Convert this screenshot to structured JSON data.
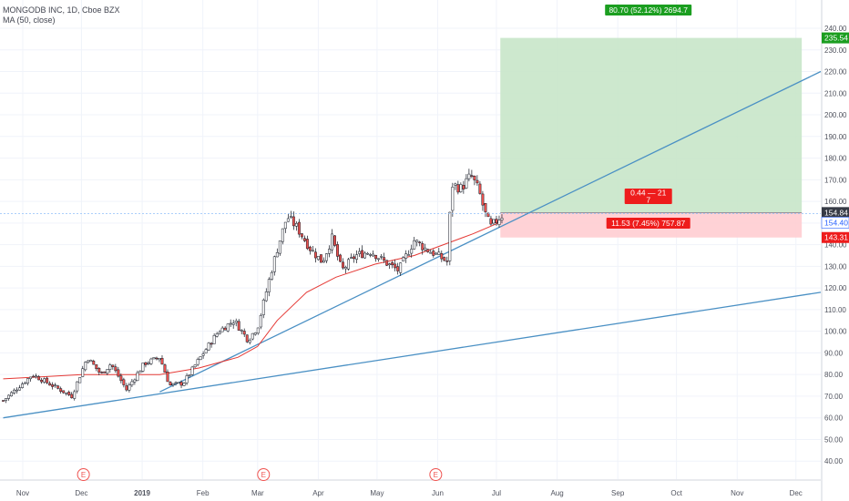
{
  "legend": {
    "title": "MONGODB INC, 1D, Cboe BZX",
    "indicator": "MA (50, close)"
  },
  "colors": {
    "up": "#ffffff",
    "down": "#ef5350",
    "wick": "#131722",
    "ma": "#e53935",
    "trendline": "#4a90c4",
    "target_zone": "#c8e6c9",
    "stop_zone": "#ffcdd2",
    "target_label": "#1b9e20",
    "stop_label": "#ee1c1c"
  },
  "position": {
    "target_label": "80.70 (52.12%) 2694.7",
    "center_label_line1": "0.44 — 21",
    "center_label_line2": "7",
    "stop_label": "11.53 (7.45%) 757.87",
    "target_price_badge": "235.54",
    "entry_price_badge": "154.84",
    "current_price_badge": "154.40",
    "stop_price_badge": "143.31"
  },
  "earnings_marker": "E",
  "chart_data": {
    "type": "candlestick",
    "title": "MONGODB INC, 1D, Cboe BZX",
    "ylim": [
      22,
      242
    ],
    "yticks": [
      30,
      40,
      50,
      60,
      70,
      80,
      90,
      100,
      110,
      120,
      130,
      140,
      150,
      160,
      170,
      180,
      190,
      200,
      210,
      220,
      230,
      240
    ],
    "x_labels": [
      {
        "label": "Nov",
        "day": 0
      },
      {
        "label": "Dec",
        "day": 30
      },
      {
        "label": "2019",
        "day": 61
      },
      {
        "label": "Feb",
        "day": 92
      },
      {
        "label": "Mar",
        "day": 120
      },
      {
        "label": "Apr",
        "day": 151
      },
      {
        "label": "May",
        "day": 181
      },
      {
        "label": "Jun",
        "day": 212
      },
      {
        "label": "Jul",
        "day": 242
      },
      {
        "label": "Aug",
        "day": 273
      },
      {
        "label": "Sep",
        "day": 304
      },
      {
        "label": "Oct",
        "day": 334
      },
      {
        "label": "Nov",
        "day": 365
      },
      {
        "label": "Dec",
        "day": 395
      }
    ],
    "earnings_days": [
      31,
      123,
      211
    ],
    "key_points": [
      {
        "day": -10,
        "close": 68
      },
      {
        "day": 5,
        "close": 80
      },
      {
        "day": 15,
        "close": 75
      },
      {
        "day": 25,
        "close": 70
      },
      {
        "day": 33,
        "close": 88
      },
      {
        "day": 40,
        "close": 80
      },
      {
        "day": 45,
        "close": 85
      },
      {
        "day": 53,
        "close": 73
      },
      {
        "day": 62,
        "close": 85
      },
      {
        "day": 70,
        "close": 88
      },
      {
        "day": 75,
        "close": 75
      },
      {
        "day": 82,
        "close": 76
      },
      {
        "day": 90,
        "close": 87
      },
      {
        "day": 100,
        "close": 100
      },
      {
        "day": 108,
        "close": 105
      },
      {
        "day": 115,
        "close": 96
      },
      {
        "day": 120,
        "close": 102
      },
      {
        "day": 127,
        "close": 128
      },
      {
        "day": 130,
        "close": 138
      },
      {
        "day": 135,
        "close": 153
      },
      {
        "day": 140,
        "close": 148
      },
      {
        "day": 147,
        "close": 138
      },
      {
        "day": 153,
        "close": 132
      },
      {
        "day": 158,
        "close": 143
      },
      {
        "day": 163,
        "close": 128
      },
      {
        "day": 170,
        "close": 135
      },
      {
        "day": 178,
        "close": 137
      },
      {
        "day": 185,
        "close": 132
      },
      {
        "day": 192,
        "close": 128
      },
      {
        "day": 200,
        "close": 142
      },
      {
        "day": 206,
        "close": 138
      },
      {
        "day": 212,
        "close": 135
      },
      {
        "day": 217,
        "close": 132
      },
      {
        "day": 219,
        "close": 168
      },
      {
        "day": 224,
        "close": 166
      },
      {
        "day": 229,
        "close": 172
      },
      {
        "day": 233,
        "close": 165
      },
      {
        "day": 236,
        "close": 155
      },
      {
        "day": 239,
        "close": 148
      },
      {
        "day": 243,
        "close": 152
      },
      {
        "day": 246,
        "close": 154.4
      }
    ],
    "moving_average": [
      {
        "day": -10,
        "value": 78
      },
      {
        "day": 10,
        "value": 79
      },
      {
        "day": 30,
        "value": 80
      },
      {
        "day": 50,
        "value": 80
      },
      {
        "day": 70,
        "value": 80
      },
      {
        "day": 90,
        "value": 83
      },
      {
        "day": 110,
        "value": 88
      },
      {
        "day": 120,
        "value": 93
      },
      {
        "day": 130,
        "value": 105
      },
      {
        "day": 145,
        "value": 118
      },
      {
        "day": 160,
        "value": 125
      },
      {
        "day": 180,
        "value": 131
      },
      {
        "day": 200,
        "value": 135
      },
      {
        "day": 215,
        "value": 140
      },
      {
        "day": 230,
        "value": 145
      },
      {
        "day": 243,
        "value": 150
      }
    ],
    "trendlines": [
      {
        "from": {
          "day": 70,
          "price": 72
        },
        "to": {
          "day": 410,
          "price": 220
        }
      },
      {
        "from": {
          "day": -10,
          "price": 60
        },
        "to": {
          "day": 410,
          "price": 118
        }
      }
    ],
    "position": {
      "entry": 154.84,
      "target": 235.54,
      "stop": 143.31,
      "start_day": 244,
      "end_day": 398
    },
    "current_price": 154.4
  }
}
